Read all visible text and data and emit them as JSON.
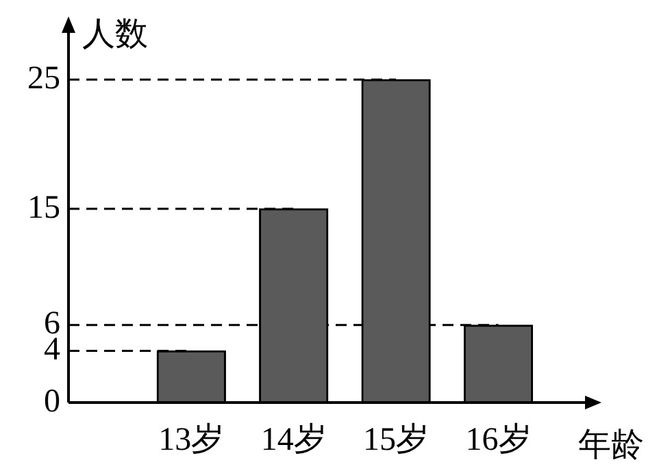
{
  "chart_data": {
    "type": "bar",
    "xlabel": "年龄",
    "ylabel": "人数",
    "categories": [
      "13岁",
      "14岁",
      "15岁",
      "16岁"
    ],
    "values": [
      4,
      15,
      25,
      6
    ],
    "color": "#5a5a5a",
    "ylim": [
      0,
      29
    ],
    "yticks": [
      0,
      4,
      6,
      15,
      25
    ],
    "grid": false,
    "legend": false,
    "ref_lines": [
      {
        "axis": "y",
        "value": 4,
        "line_style": "dashed"
      },
      {
        "axis": "y",
        "value": 6,
        "line_style": "dashed"
      },
      {
        "axis": "y",
        "value": 15,
        "line_style": "dashed"
      },
      {
        "axis": "y",
        "value": 25,
        "line_style": "dashed"
      }
    ]
  }
}
